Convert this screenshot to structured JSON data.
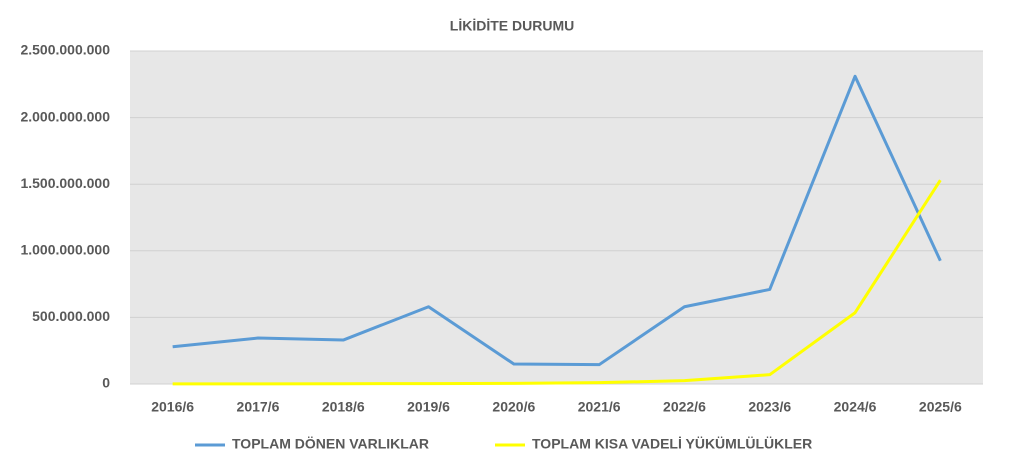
{
  "chart_data": {
    "type": "line",
    "title": "LİKİDİTE DURUMU",
    "categories": [
      "2016/6",
      "2017/6",
      "2018/6",
      "2019/6",
      "2020/6",
      "2021/6",
      "2022/6",
      "2023/6",
      "2024/6",
      "2025/6"
    ],
    "series": [
      {
        "name": "TOPLAM DÖNEN VARLIKLAR",
        "color": "#5b9bd5",
        "values": [
          280000000,
          345000000,
          330000000,
          580000000,
          150000000,
          145000000,
          580000000,
          710000000,
          2310000000,
          925000000
        ]
      },
      {
        "name": "TOPLAM KISA VADELİ YÜKÜMLÜLÜKLER",
        "color": "#ffff00",
        "values": [
          1000000,
          1000000,
          2000000,
          3000000,
          5000000,
          10000000,
          25000000,
          70000000,
          535000000,
          1530000000
        ]
      }
    ],
    "ylim": [
      0,
      2500000000
    ],
    "yticks": [
      0,
      {
        "value": 500000000,
        "label": "500.000.000"
      },
      {
        "value": 1000000000,
        "label": "1.000.000.000"
      },
      {
        "value": 1500000000,
        "label": "1.500.000.000"
      },
      {
        "value": 2000000000,
        "label": "2.000.000.000"
      },
      {
        "value": 2500000000,
        "label": "2.500.000.000"
      }
    ],
    "grid": true,
    "legend": "bottom"
  }
}
